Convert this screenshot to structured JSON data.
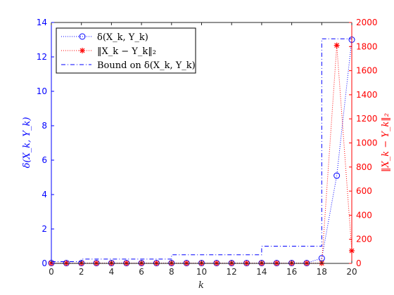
{
  "chart_data": {
    "type": "scatter",
    "xlabel": "k",
    "ylabel_left": "δ(X_k, Y_k)",
    "ylabel_right": "‖X_k − Y_k‖₂",
    "xlim": [
      0,
      20
    ],
    "ylim_left": [
      0,
      14
    ],
    "ylim_right": [
      0,
      2000
    ],
    "x_ticks": [
      0,
      2,
      4,
      6,
      8,
      10,
      12,
      14,
      16,
      18,
      20
    ],
    "left_ticks": [
      0,
      2,
      4,
      6,
      8,
      10,
      12,
      14
    ],
    "right_ticks": [
      0,
      200,
      400,
      600,
      800,
      1000,
      1200,
      1400,
      1600,
      1800,
      2000
    ],
    "grid": false,
    "legend_position": "top-left",
    "colors": {
      "left_axis": "#0000ff",
      "right_axis": "#ff0000",
      "axes": "#262626"
    },
    "series": [
      {
        "name": "δ(X_k, Y_k)",
        "axis": "left",
        "marker": "circle",
        "line": "dotted",
        "color": "#0000ff",
        "x": [
          0,
          1,
          2,
          3,
          4,
          5,
          6,
          7,
          8,
          9,
          10,
          11,
          12,
          13,
          14,
          15,
          16,
          17,
          18,
          19,
          20
        ],
        "y": [
          0.02,
          0.02,
          0.02,
          0.02,
          0.02,
          0.02,
          0.02,
          0.02,
          0.02,
          0.02,
          0.02,
          0.02,
          0.02,
          0.02,
          0.02,
          0.02,
          0.02,
          0.02,
          0.3,
          5.1,
          13.0
        ]
      },
      {
        "name": "‖X_k − Y_k‖₂",
        "axis": "right",
        "marker": "asterisk",
        "line": "dotted",
        "color": "#ff0000",
        "x": [
          0,
          1,
          2,
          3,
          4,
          5,
          6,
          7,
          8,
          9,
          10,
          11,
          12,
          13,
          14,
          15,
          16,
          17,
          18,
          19,
          20
        ],
        "y": [
          2,
          2,
          2,
          2,
          2,
          2,
          2,
          2,
          2,
          2,
          2,
          2,
          2,
          2,
          2,
          2,
          2,
          2,
          2,
          1810,
          105
        ]
      },
      {
        "name": "Bound on δ(X_k, Y_k)",
        "axis": "left",
        "marker": "none",
        "line": "dashdot",
        "color": "#0000ff",
        "x": [
          0,
          2,
          2,
          8,
          8,
          14,
          14,
          18,
          18,
          20
        ],
        "y": [
          0.1,
          0.1,
          0.25,
          0.25,
          0.5,
          0.5,
          1.0,
          1.0,
          13.05,
          13.05
        ]
      }
    ]
  }
}
